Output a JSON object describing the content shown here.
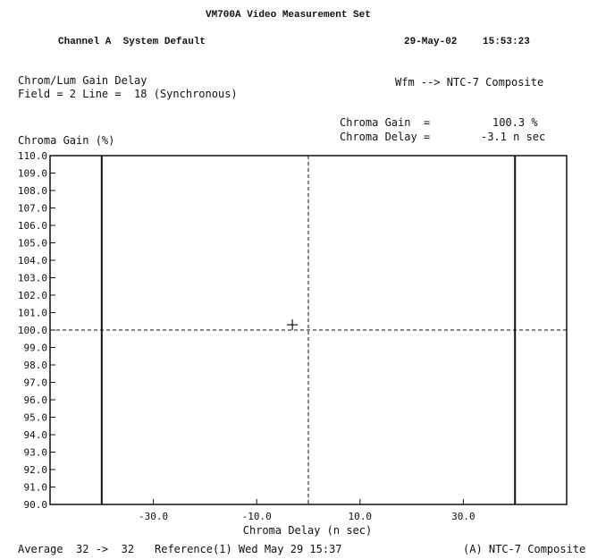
{
  "header": {
    "title": "VM700A Video Measurement Set",
    "channel": "Channel A  System Default",
    "date": "29-May-02",
    "time": "15:53:23"
  },
  "measurement": {
    "name": "Chrom/Lum Gain Delay",
    "field_line": "Field = 2 Line =  18 (Synchronous)",
    "waveform": "Wfm --> NTC-7 Composite",
    "gain_label": "Chroma Gain  =",
    "gain_value": "100.3 %",
    "delay_label": "Chroma Delay =",
    "delay_value": "-3.1 n sec"
  },
  "footer": {
    "average": "Average  32 ->  32",
    "reference": "Reference(1) Wed May 29 15:37",
    "source": "(A) NTC-7 Composite"
  },
  "chart_data": {
    "type": "scatter",
    "title": "",
    "xlabel": "Chroma Delay (n sec)",
    "ylabel": "Chroma Gain (%)",
    "xlim": [
      -50,
      50
    ],
    "ylim": [
      90,
      110
    ],
    "x_ticks": [
      -30,
      -10,
      10,
      30
    ],
    "x_tick_labels": [
      "-30.0",
      "-10.0",
      "10.0",
      "30.0"
    ],
    "y_ticks": [
      90,
      91,
      92,
      93,
      94,
      95,
      96,
      97,
      98,
      99,
      100,
      101,
      102,
      103,
      104,
      105,
      106,
      107,
      108,
      109,
      110
    ],
    "y_tick_labels": [
      "90.0",
      "91.0",
      "92.0",
      "93.0",
      "94.0",
      "95.0",
      "96.0",
      "97.0",
      "98.0",
      "99.0",
      "100.0",
      "101.0",
      "102.0",
      "103.0",
      "104.0",
      "105.0",
      "106.0",
      "107.0",
      "108.0",
      "109.0",
      "110.0"
    ],
    "limit_lines_x": [
      -40,
      40
    ],
    "reference_lines": {
      "x": 0,
      "y": 100
    },
    "points": [
      {
        "x": -3.1,
        "y": 100.3
      }
    ],
    "marker": "plus",
    "grid": false
  }
}
